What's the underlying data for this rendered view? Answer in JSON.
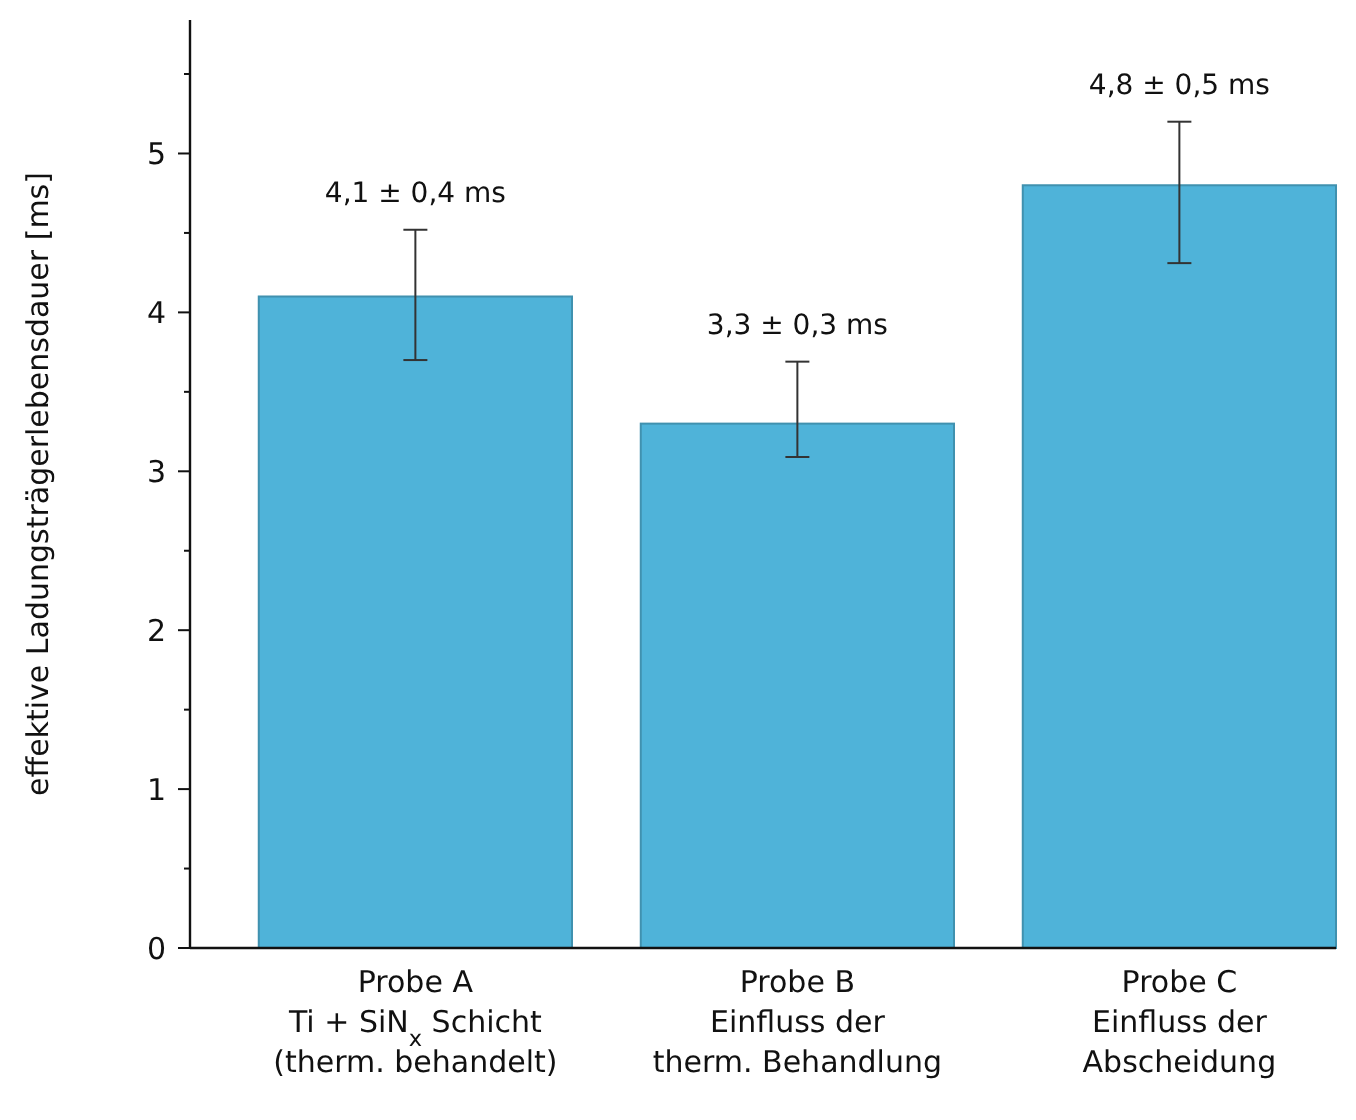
{
  "chart_data": {
    "type": "bar",
    "ylabel": "effektive Ladungsträgerlebensdauer [ms]",
    "categories": [
      "Probe A\nTi + SiN$_{x}$ Schicht\n(therm. behandelt)",
      "Probe B\nEinfluss der\ntherm. Behandlung",
      "Probe C\nEinfluss der\nAbscheidung"
    ],
    "values": [
      4.1,
      3.3,
      4.8
    ],
    "color": "#4fb3d9",
    "errors": [
      [
        3.7,
        4.52
      ],
      [
        3.09,
        3.69
      ],
      [
        4.31,
        5.2
      ]
    ],
    "value_labels": [
      "4,1 ± 0,4 ms",
      "3,3 ± 0,3 ms",
      "4,8 ± 0,5 ms"
    ],
    "ylim": [
      0,
      5.84
    ],
    "yticks": [
      0,
      {
        "value": 0.5,
        "label": null
      },
      1,
      {
        "value": 1.5,
        "label": null
      },
      2,
      {
        "value": 2.5,
        "label": null
      },
      3,
      {
        "value": 3.5,
        "label": null
      },
      4,
      {
        "value": 4.5,
        "label": null
      },
      5,
      {
        "value": 5.5,
        "label": null
      }
    ],
    "grid": false
  }
}
